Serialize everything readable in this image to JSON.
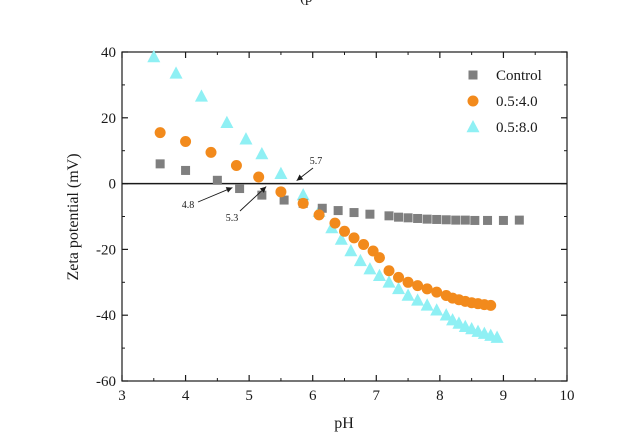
{
  "chart_data": {
    "type": "scatter",
    "title_fragment": "(p",
    "xlabel": "pH",
    "ylabel": "Zeta potential (mV)",
    "xlim": [
      3,
      10
    ],
    "ylim": [
      -60,
      40
    ],
    "x_ticks": [
      3,
      4,
      5,
      6,
      7,
      8,
      9,
      10
    ],
    "y_ticks": [
      40,
      20,
      0,
      -20,
      -40,
      -60
    ],
    "zero_line": true,
    "grid": false,
    "legend_position": "top-right",
    "series": [
      {
        "name": "Control",
        "marker": "square",
        "color": "#7f7f7f",
        "points": [
          [
            3.6,
            6
          ],
          [
            4.0,
            4
          ],
          [
            4.5,
            1
          ],
          [
            4.85,
            -1.5
          ],
          [
            5.2,
            -3.5
          ],
          [
            5.55,
            -5
          ],
          [
            5.85,
            -6
          ],
          [
            6.15,
            -7.5
          ],
          [
            6.4,
            -8.2
          ],
          [
            6.65,
            -8.8
          ],
          [
            6.9,
            -9.3
          ],
          [
            7.2,
            -9.8
          ],
          [
            7.35,
            -10.2
          ],
          [
            7.5,
            -10.4
          ],
          [
            7.65,
            -10.6
          ],
          [
            7.8,
            -10.8
          ],
          [
            7.95,
            -10.9
          ],
          [
            8.1,
            -11.0
          ],
          [
            8.25,
            -11.1
          ],
          [
            8.4,
            -11.1
          ],
          [
            8.55,
            -11.2
          ],
          [
            8.75,
            -11.2
          ],
          [
            9.0,
            -11.2
          ],
          [
            9.25,
            -11.1
          ]
        ]
      },
      {
        "name": "0.5:4.0",
        "marker": "circle",
        "color": "#f28a1c",
        "points": [
          [
            3.6,
            15.5
          ],
          [
            4.0,
            12.8
          ],
          [
            4.4,
            9.5
          ],
          [
            4.8,
            5.5
          ],
          [
            5.15,
            2.0
          ],
          [
            5.5,
            -2.5
          ],
          [
            5.85,
            -6.0
          ],
          [
            6.1,
            -9.5
          ],
          [
            6.35,
            -12.0
          ],
          [
            6.5,
            -14.5
          ],
          [
            6.65,
            -16.5
          ],
          [
            6.8,
            -18.5
          ],
          [
            6.95,
            -20.5
          ],
          [
            7.05,
            -22.5
          ],
          [
            7.2,
            -26.5
          ],
          [
            7.35,
            -28.5
          ],
          [
            7.5,
            -30.0
          ],
          [
            7.65,
            -31.0
          ],
          [
            7.8,
            -32.0
          ],
          [
            7.95,
            -33.0
          ],
          [
            8.1,
            -34.0
          ],
          [
            8.2,
            -34.8
          ],
          [
            8.3,
            -35.3
          ],
          [
            8.4,
            -35.8
          ],
          [
            8.5,
            -36.2
          ],
          [
            8.6,
            -36.5
          ],
          [
            8.7,
            -36.8
          ],
          [
            8.8,
            -37.0
          ]
        ]
      },
      {
        "name": "0.5:8.0",
        "marker": "triangle",
        "color": "#8ff0f4",
        "points": [
          [
            3.5,
            38.5
          ],
          [
            3.85,
            33.5
          ],
          [
            4.25,
            26.5
          ],
          [
            4.65,
            18.5
          ],
          [
            4.95,
            13.5
          ],
          [
            5.2,
            9.0
          ],
          [
            5.5,
            3.0
          ],
          [
            5.85,
            -3.5
          ],
          [
            6.1,
            -8.5
          ],
          [
            6.3,
            -13.5
          ],
          [
            6.45,
            -17.0
          ],
          [
            6.6,
            -20.5
          ],
          [
            6.75,
            -23.5
          ],
          [
            6.9,
            -26.0
          ],
          [
            7.05,
            -28.0
          ],
          [
            7.2,
            -30.0
          ],
          [
            7.35,
            -32.0
          ],
          [
            7.5,
            -34.0
          ],
          [
            7.65,
            -35.5
          ],
          [
            7.8,
            -37.0
          ],
          [
            7.95,
            -38.5
          ],
          [
            8.1,
            -40.0
          ],
          [
            8.2,
            -41.5
          ],
          [
            8.3,
            -42.5
          ],
          [
            8.4,
            -43.5
          ],
          [
            8.5,
            -44.2
          ],
          [
            8.6,
            -45.0
          ],
          [
            8.7,
            -45.6
          ],
          [
            8.8,
            -46.2
          ],
          [
            8.9,
            -46.8
          ]
        ]
      }
    ],
    "annotations": [
      {
        "label": "4.8",
        "x": 4.8,
        "y": 0
      },
      {
        "label": "5.3",
        "x": 5.3,
        "y": 0
      },
      {
        "label": "5.7",
        "x": 5.7,
        "y": 0
      }
    ]
  }
}
